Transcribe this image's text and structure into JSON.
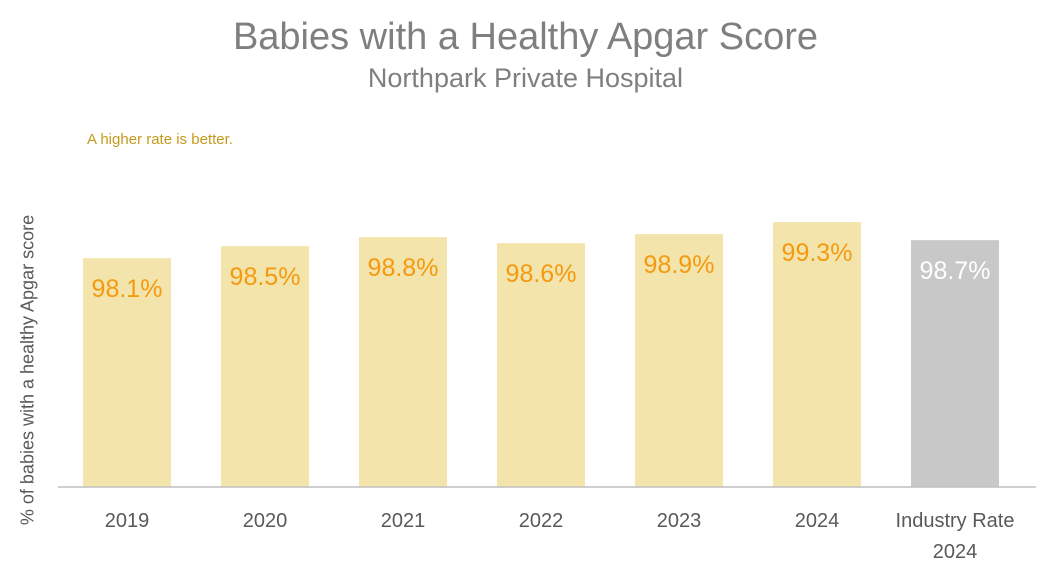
{
  "chart_data": {
    "type": "bar",
    "title": "Babies with a Healthy Apgar Score",
    "subtitle": "Northpark Private Hospital",
    "annotation": "A higher rate is better.",
    "ylabel": "% of babies with a healthy Apgar score",
    "xlabel": "",
    "categories": [
      "2019",
      "2020",
      "2021",
      "2022",
      "2023",
      "2024",
      "Industry Rate 2024"
    ],
    "values": [
      98.1,
      98.5,
      98.8,
      98.6,
      98.9,
      99.3,
      98.7
    ],
    "data_labels": [
      "98.1%",
      "98.5%",
      "98.8%",
      "98.6%",
      "98.9%",
      "99.3%",
      "98.7%"
    ],
    "ylim": [
      90.5,
      100
    ],
    "grid": false,
    "legend": "none",
    "bar_colors": [
      "#f2e4aa",
      "#f2e4aa",
      "#f2e4aa",
      "#f2e4aa",
      "#f2e4aa",
      "#f2e4aa",
      "#c8c8c8"
    ],
    "label_colors": [
      "#f59a10",
      "#f59a10",
      "#f59a10",
      "#f59a10",
      "#f59a10",
      "#f59a10",
      "#ffffff"
    ]
  }
}
